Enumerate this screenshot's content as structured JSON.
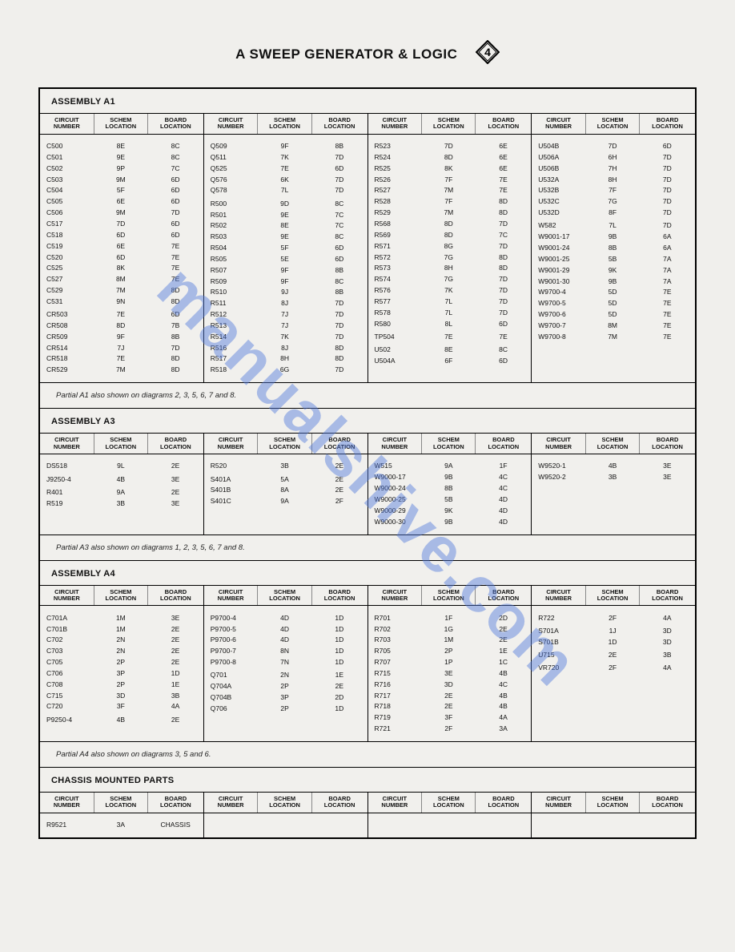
{
  "title": "A SWEEP GENERATOR & LOGIC",
  "diamond_number": "4",
  "watermark": "manualshive.com",
  "headers": {
    "circuit": "CIRCUIT\nNUMBER",
    "schem": "SCHEM\nLOCATION",
    "board": "BOARD\nLOCATION"
  },
  "sections": [
    {
      "title": "ASSEMBLY A1",
      "note": "Partial A1 also shown on diagrams 2, 3, 5, 6, 7 and 8.",
      "groups": [
        [
          [
            "C500",
            "8E",
            "8C"
          ],
          [
            "C501",
            "9E",
            "8C"
          ],
          [
            "C502",
            "9P",
            "7C"
          ],
          [
            "C503",
            "9M",
            "6D"
          ],
          [
            "C504",
            "5F",
            "6D"
          ],
          [
            "C505",
            "6E",
            "6D"
          ],
          [
            "C506",
            "9M",
            "7D"
          ],
          [
            "C517",
            "7D",
            "6D"
          ],
          [
            "C518",
            "6D",
            "6D"
          ],
          [
            "C519",
            "6E",
            "7E"
          ],
          [
            "C520",
            "6D",
            "7E"
          ],
          [
            "C525",
            "8K",
            "7E"
          ],
          [
            "C527",
            "8M",
            "7E"
          ],
          [
            "C529",
            "7M",
            "8D"
          ],
          [
            "C531",
            "9N",
            "8D"
          ],
          [
            "",
            "",
            ""
          ],
          [
            "CR503",
            "7E",
            "6D"
          ],
          [
            "CR508",
            "8D",
            "7B"
          ],
          [
            "CR509",
            "9F",
            "8B"
          ],
          [
            "CR514",
            "7J",
            "7D"
          ],
          [
            "CR518",
            "7E",
            "8D"
          ],
          [
            "CR529",
            "7M",
            "8D"
          ]
        ],
        [
          [
            "Q509",
            "9F",
            "8B"
          ],
          [
            "Q511",
            "7K",
            "7D"
          ],
          [
            "Q525",
            "7E",
            "6D"
          ],
          [
            "Q576",
            "6K",
            "7D"
          ],
          [
            "Q578",
            "7L",
            "7D"
          ],
          [
            "",
            "",
            ""
          ],
          [
            "R500",
            "9D",
            "8C"
          ],
          [
            "R501",
            "9E",
            "7C"
          ],
          [
            "R502",
            "8E",
            "7C"
          ],
          [
            "R503",
            "9E",
            "8C"
          ],
          [
            "R504",
            "5F",
            "6D"
          ],
          [
            "R505",
            "5E",
            "6D"
          ],
          [
            "R507",
            "9F",
            "8B"
          ],
          [
            "R509",
            "9F",
            "8C"
          ],
          [
            "R510",
            "9J",
            "8B"
          ],
          [
            "R511",
            "8J",
            "7D"
          ],
          [
            "R512",
            "7J",
            "7D"
          ],
          [
            "R513",
            "7J",
            "7D"
          ],
          [
            "R514",
            "7K",
            "7D"
          ],
          [
            "R516",
            "8J",
            "8D"
          ],
          [
            "R517",
            "8H",
            "8D"
          ],
          [
            "R518",
            "6G",
            "7D"
          ]
        ],
        [
          [
            "R523",
            "7D",
            "6E"
          ],
          [
            "R524",
            "8D",
            "6E"
          ],
          [
            "R525",
            "8K",
            "6E"
          ],
          [
            "R526",
            "7F",
            "7E"
          ],
          [
            "R527",
            "7M",
            "7E"
          ],
          [
            "R528",
            "7F",
            "8D"
          ],
          [
            "R529",
            "7M",
            "8D"
          ],
          [
            "R568",
            "8D",
            "7D"
          ],
          [
            "R569",
            "8D",
            "7C"
          ],
          [
            "R571",
            "8G",
            "7D"
          ],
          [
            "R572",
            "7G",
            "8D"
          ],
          [
            "R573",
            "8H",
            "8D"
          ],
          [
            "R574",
            "7G",
            "7D"
          ],
          [
            "R576",
            "7K",
            "7D"
          ],
          [
            "R577",
            "7L",
            "7D"
          ],
          [
            "R578",
            "7L",
            "7D"
          ],
          [
            "R580",
            "8L",
            "6D"
          ],
          [
            "",
            "",
            ""
          ],
          [
            "TP504",
            "7E",
            "7E"
          ],
          [
            "",
            "",
            ""
          ],
          [
            "U502",
            "8E",
            "8C"
          ],
          [
            "U504A",
            "6F",
            "6D"
          ]
        ],
        [
          [
            "U504B",
            "7D",
            "6D"
          ],
          [
            "U506A",
            "6H",
            "7D"
          ],
          [
            "U506B",
            "7H",
            "7D"
          ],
          [
            "U532A",
            "8H",
            "7D"
          ],
          [
            "U532B",
            "7F",
            "7D"
          ],
          [
            "U532C",
            "7G",
            "7D"
          ],
          [
            "U532D",
            "8F",
            "7D"
          ],
          [
            "",
            "",
            ""
          ],
          [
            "W582",
            "7L",
            "7D"
          ],
          [
            "W9001-17",
            "9B",
            "6A"
          ],
          [
            "W9001-24",
            "8B",
            "6A"
          ],
          [
            "W9001-25",
            "5B",
            "7A"
          ],
          [
            "W9001-29",
            "9K",
            "7A"
          ],
          [
            "W9001-30",
            "9B",
            "7A"
          ],
          [
            "W9700-4",
            "5D",
            "7E"
          ],
          [
            "W9700-5",
            "5D",
            "7E"
          ],
          [
            "W9700-6",
            "5D",
            "7E"
          ],
          [
            "W9700-7",
            "8M",
            "7E"
          ],
          [
            "W9700-8",
            "7M",
            "7E"
          ]
        ]
      ]
    },
    {
      "title": "ASSEMBLY A3",
      "note": "Partial A3 also shown on diagrams 1, 2, 3, 5, 6, 7 and 8.",
      "groups": [
        [
          [
            "DS518",
            "9L",
            "2E"
          ],
          [
            "",
            "",
            ""
          ],
          [
            "J9250-4",
            "4B",
            "3E"
          ],
          [
            "",
            "",
            ""
          ],
          [
            "R401",
            "9A",
            "2E"
          ],
          [
            "R519",
            "3B",
            "3E"
          ]
        ],
        [
          [
            "R520",
            "3B",
            "2E"
          ],
          [
            "",
            "",
            ""
          ],
          [
            "S401A",
            "5A",
            "2E"
          ],
          [
            "S401B",
            "8A",
            "2E"
          ],
          [
            "S401C",
            "9A",
            "2F"
          ]
        ],
        [
          [
            "W515",
            "9A",
            "1F"
          ],
          [
            "W9000-17",
            "9B",
            "4C"
          ],
          [
            "W9000-24",
            "8B",
            "4C"
          ],
          [
            "W9000-25",
            "5B",
            "4D"
          ],
          [
            "W9000-29",
            "9K",
            "4D"
          ],
          [
            "W9000-30",
            "9B",
            "4D"
          ]
        ],
        [
          [
            "W9520-1",
            "4B",
            "3E"
          ],
          [
            "W9520-2",
            "3B",
            "3E"
          ]
        ]
      ]
    },
    {
      "title": "ASSEMBLY A4",
      "note": "Partial A4 also shown on diagrams 3, 5 and 6.",
      "groups": [
        [
          [
            "C701A",
            "1M",
            "3E"
          ],
          [
            "C701B",
            "1M",
            "2E"
          ],
          [
            "C702",
            "2N",
            "2E"
          ],
          [
            "C703",
            "2N",
            "2E"
          ],
          [
            "C705",
            "2P",
            "2E"
          ],
          [
            "C706",
            "3P",
            "1D"
          ],
          [
            "C708",
            "2P",
            "1E"
          ],
          [
            "C715",
            "3D",
            "3B"
          ],
          [
            "C720",
            "3F",
            "4A"
          ],
          [
            "",
            "",
            ""
          ],
          [
            "P9250-4",
            "4B",
            "2E"
          ]
        ],
        [
          [
            "P9700-4",
            "4D",
            "1D"
          ],
          [
            "P9700-5",
            "4D",
            "1D"
          ],
          [
            "P9700-6",
            "4D",
            "1D"
          ],
          [
            "P9700-7",
            "8N",
            "1D"
          ],
          [
            "P9700-8",
            "7N",
            "1D"
          ],
          [
            "",
            "",
            ""
          ],
          [
            "Q701",
            "2N",
            "1E"
          ],
          [
            "Q704A",
            "2P",
            "2E"
          ],
          [
            "Q704B",
            "3P",
            "2D"
          ],
          [
            "Q706",
            "2P",
            "1D"
          ]
        ],
        [
          [
            "R701",
            "1F",
            "2D"
          ],
          [
            "R702",
            "1G",
            "2E"
          ],
          [
            "R703",
            "1M",
            "2E"
          ],
          [
            "R705",
            "2P",
            "1E"
          ],
          [
            "R707",
            "1P",
            "1C"
          ],
          [
            "R715",
            "3E",
            "4B"
          ],
          [
            "R716",
            "3D",
            "4C"
          ],
          [
            "R717",
            "2E",
            "4B"
          ],
          [
            "R718",
            "2E",
            "4B"
          ],
          [
            "R719",
            "3F",
            "4A"
          ],
          [
            "R721",
            "2F",
            "3A"
          ]
        ],
        [
          [
            "R722",
            "2F",
            "4A"
          ],
          [
            "",
            "",
            ""
          ],
          [
            "S701A",
            "1J",
            "3D"
          ],
          [
            "S701B",
            "1D",
            "3D"
          ],
          [
            "",
            "",
            ""
          ],
          [
            "U715",
            "2E",
            "3B"
          ],
          [
            "",
            "",
            ""
          ],
          [
            "VR720",
            "2F",
            "4A"
          ]
        ]
      ]
    },
    {
      "title": "CHASSIS MOUNTED PARTS",
      "note": "",
      "groups": [
        [
          [
            "R9521",
            "3A",
            "CHASSIS"
          ]
        ],
        [],
        [],
        []
      ]
    }
  ]
}
